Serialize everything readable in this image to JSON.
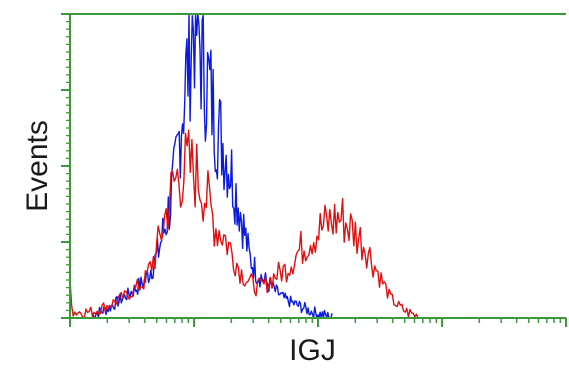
{
  "chart_data": {
    "type": "line",
    "xlabel": "IGJ",
    "ylabel": "Events",
    "xscale": "log",
    "xlim": [
      1,
      10000
    ],
    "ylim": [
      0,
      100
    ],
    "grid": false,
    "legend": "none",
    "colors": {
      "frame": "#3a9a3a",
      "tick": "#3a9a3a"
    },
    "series": [
      {
        "color": "#0a1ae0",
        "points": [
          [
            1.5,
            1
          ],
          [
            2,
            3
          ],
          [
            3,
            8
          ],
          [
            4,
            12
          ],
          [
            5,
            20
          ],
          [
            6,
            32
          ],
          [
            7,
            46
          ],
          [
            8,
            68
          ],
          [
            9,
            85
          ],
          [
            10,
            99
          ],
          [
            11,
            92
          ],
          [
            12,
            80
          ],
          [
            13,
            78
          ],
          [
            15,
            64
          ],
          [
            17,
            58
          ],
          [
            20,
            48
          ],
          [
            24,
            34
          ],
          [
            28,
            20
          ],
          [
            32,
            15
          ],
          [
            38,
            12
          ],
          [
            45,
            9
          ],
          [
            55,
            6
          ],
          [
            70,
            4
          ],
          [
            90,
            2
          ],
          [
            110,
            1
          ],
          [
            130,
            0
          ]
        ]
      },
      {
        "color": "#e01010",
        "points": [
          [
            1,
            12
          ],
          [
            1.05,
            2
          ],
          [
            1.5,
            2
          ],
          [
            2,
            4
          ],
          [
            3,
            8
          ],
          [
            4,
            12
          ],
          [
            5,
            22
          ],
          [
            6,
            35
          ],
          [
            7,
            45
          ],
          [
            8,
            48
          ],
          [
            9,
            50
          ],
          [
            10,
            48
          ],
          [
            11,
            46
          ],
          [
            12,
            42
          ],
          [
            13,
            38
          ],
          [
            15,
            30
          ],
          [
            17,
            28
          ],
          [
            20,
            22
          ],
          [
            24,
            15
          ],
          [
            28,
            12
          ],
          [
            32,
            10
          ],
          [
            38,
            11
          ],
          [
            45,
            14
          ],
          [
            55,
            16
          ],
          [
            70,
            22
          ],
          [
            90,
            27
          ],
          [
            110,
            30
          ],
          [
            130,
            32
          ],
          [
            155,
            33
          ],
          [
            170,
            31
          ],
          [
            200,
            28
          ],
          [
            240,
            24
          ],
          [
            280,
            18
          ],
          [
            330,
            12
          ],
          [
            380,
            7
          ],
          [
            440,
            4
          ],
          [
            520,
            2
          ],
          [
            600,
            1
          ],
          [
            700,
            0
          ]
        ]
      }
    ]
  }
}
